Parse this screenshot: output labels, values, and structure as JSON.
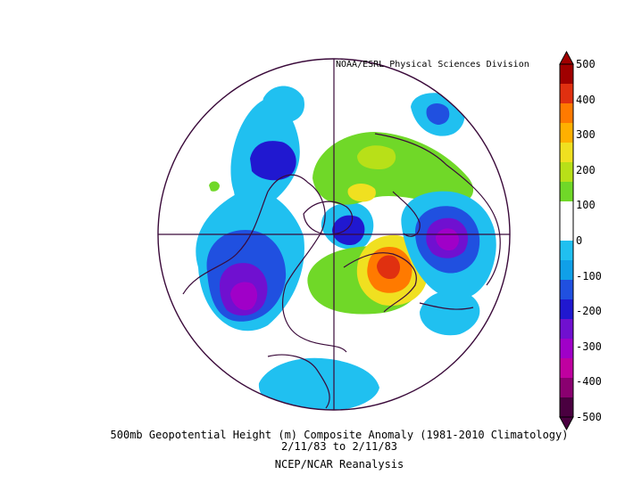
{
  "header": {
    "credit": "NOAA/ESRL Physical Sciences Division"
  },
  "caption": {
    "line1": "500mb Geopotential Height (m) Composite Anomaly (1981-2010 Climatology)",
    "line2": "2/11/83   to 2/11/83",
    "line3": "NCEP/NCAR Reanalysis"
  },
  "colorbar": {
    "tick_labels": [
      "500",
      "400",
      "300",
      "200",
      "100",
      "0",
      "-100",
      "-200",
      "-300",
      "-400",
      "-500"
    ],
    "colors": [
      "#a00000",
      "#e03010",
      "#ff7a00",
      "#ffb000",
      "#f0e020",
      "#b8e018",
      "#70d828",
      "#ffffff",
      "#ffffff",
      "#20c0f0",
      "#10a0e8",
      "#2050e0",
      "#2018d0",
      "#7010d0",
      "#a000c8",
      "#c000a0",
      "#8a0070",
      "#4a0040"
    ]
  },
  "map_colors": {
    "outline": "#3a0a3a",
    "light_blue": "#20c0f0",
    "mid_blue": "#10a0e8",
    "blue": "#2050e0",
    "dark_blue": "#2018d0",
    "purple": "#7010d0",
    "violet": "#a000c8",
    "green": "#70d828",
    "yellow_green": "#b8e018",
    "yellow": "#f0e020",
    "orange": "#ff7a00",
    "red": "#e03010"
  }
}
